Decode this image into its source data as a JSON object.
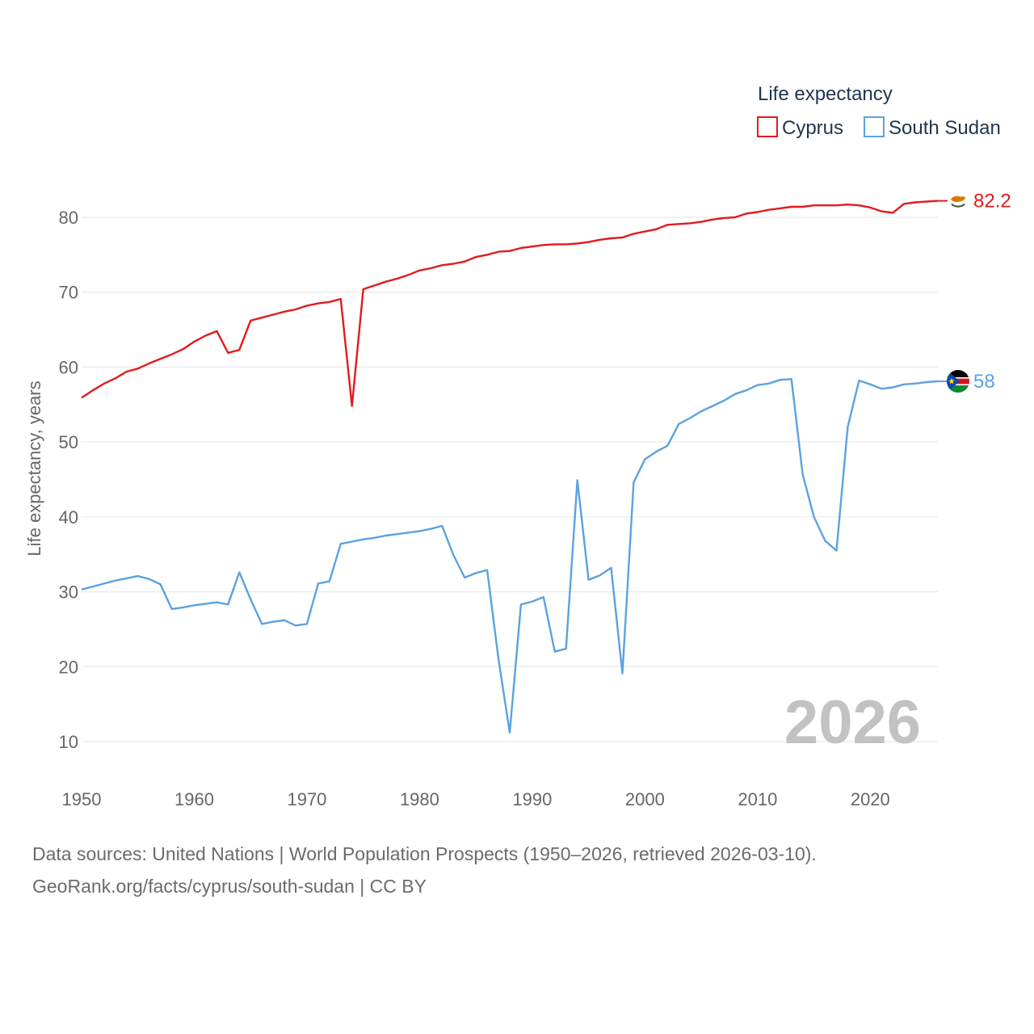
{
  "chart_data": {
    "type": "line",
    "title": "",
    "xlabel": "",
    "ylabel": "Life expectancy, years",
    "xlim": [
      1950,
      2026
    ],
    "ylim": [
      7,
      88
    ],
    "x_ticks": [
      1950,
      1960,
      1970,
      1980,
      1990,
      2000,
      2010,
      2020
    ],
    "y_ticks": [
      10,
      20,
      30,
      40,
      50,
      60,
      70,
      80
    ],
    "grid": true,
    "legend": {
      "title": "Life expectancy",
      "position": "top-right"
    },
    "current_year": "2026",
    "x": [
      1950,
      1951,
      1952,
      1953,
      1954,
      1955,
      1956,
      1957,
      1958,
      1959,
      1960,
      1961,
      1962,
      1963,
      1964,
      1965,
      1966,
      1967,
      1968,
      1969,
      1970,
      1971,
      1972,
      1973,
      1974,
      1975,
      1976,
      1977,
      1978,
      1979,
      1980,
      1981,
      1982,
      1983,
      1984,
      1985,
      1986,
      1987,
      1988,
      1989,
      1990,
      1991,
      1992,
      1993,
      1994,
      1995,
      1996,
      1997,
      1998,
      1999,
      2000,
      2001,
      2002,
      2003,
      2004,
      2005,
      2006,
      2007,
      2008,
      2009,
      2010,
      2011,
      2012,
      2013,
      2014,
      2015,
      2016,
      2017,
      2018,
      2019,
      2020,
      2021,
      2022,
      2023,
      2024,
      2025,
      2026
    ],
    "series": [
      {
        "name": "Cyprus",
        "color": "#e31a1c",
        "end_label": "82.2",
        "flag": "cyprus-flag",
        "values": [
          55.9,
          56.9,
          57.8,
          58.5,
          59.4,
          59.8,
          60.5,
          61.1,
          61.7,
          62.4,
          63.4,
          64.2,
          64.8,
          61.9,
          62.3,
          66.2,
          66.6,
          67.0,
          67.4,
          67.7,
          68.2,
          68.5,
          68.7,
          69.1,
          54.8,
          70.4,
          70.9,
          71.4,
          71.8,
          72.3,
          72.9,
          73.2,
          73.6,
          73.8,
          74.1,
          74.7,
          75.0,
          75.4,
          75.5,
          75.9,
          76.1,
          76.3,
          76.4,
          76.4,
          76.5,
          76.7,
          77.0,
          77.2,
          77.3,
          77.8,
          78.1,
          78.4,
          79.0,
          79.1,
          79.2,
          79.4,
          79.7,
          79.9,
          80.0,
          80.5,
          80.7,
          81.0,
          81.2,
          81.4,
          81.4,
          81.6,
          81.6,
          81.6,
          81.7,
          81.6,
          81.3,
          80.8,
          80.6,
          81.8,
          82.0,
          82.1,
          82.2
        ]
      },
      {
        "name": "South Sudan",
        "color": "#5ba2e0",
        "end_label": "58",
        "flag": "south-sudan-flag",
        "values": [
          30.3,
          30.7,
          31.1,
          31.5,
          31.8,
          32.1,
          31.7,
          31.0,
          27.7,
          27.9,
          28.2,
          28.4,
          28.6,
          28.3,
          32.6,
          29.0,
          25.7,
          26.0,
          26.2,
          25.5,
          25.7,
          31.1,
          31.4,
          36.4,
          36.7,
          37.0,
          37.2,
          37.5,
          37.7,
          37.9,
          38.1,
          38.4,
          38.8,
          34.9,
          31.9,
          32.5,
          32.9,
          21.0,
          11.2,
          28.3,
          28.7,
          29.3,
          22.0,
          22.4,
          44.9,
          31.6,
          32.2,
          33.2,
          19.1,
          44.6,
          47.7,
          48.7,
          49.5,
          52.4,
          53.2,
          54.1,
          54.8,
          55.5,
          56.4,
          56.9,
          57.6,
          57.8,
          58.3,
          58.4,
          45.7,
          40.0,
          36.8,
          35.5,
          52.0,
          58.2,
          57.7,
          57.1,
          57.3,
          57.7,
          57.8,
          58.0,
          58.1
        ]
      }
    ]
  },
  "footer": {
    "line1": "Data sources: United Nations | World Population Prospects (1950–2026, retrieved 2026-03-10).",
    "line2": "GeoRank.org/facts/cyprus/south-sudan | CC BY"
  }
}
